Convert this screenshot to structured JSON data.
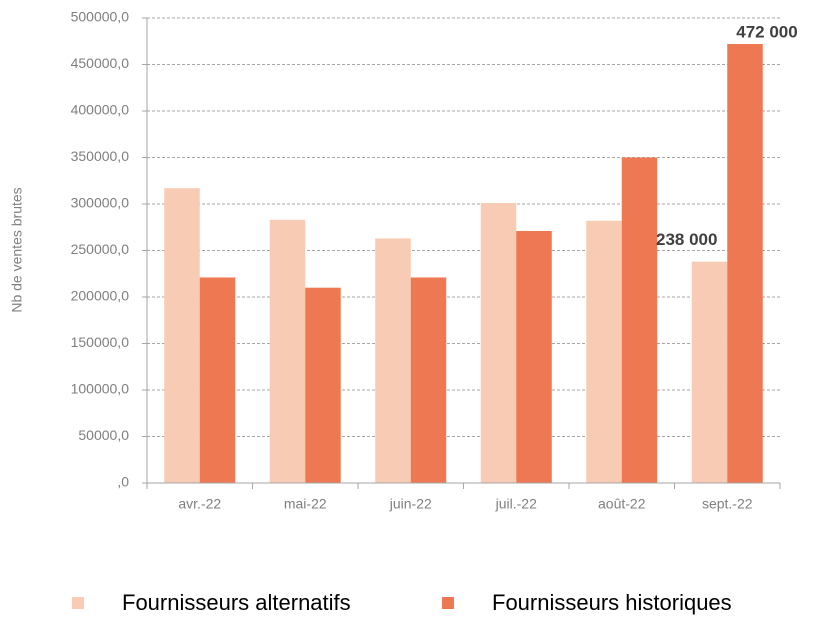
{
  "chart_data": {
    "type": "bar",
    "y_label": "Nb de ventes brutes",
    "categories": [
      "avr.-22",
      "mai-22",
      "juin-22",
      "juil.-22",
      "août-22",
      "sept.-22"
    ],
    "series": [
      {
        "name": "Fournisseurs alternatifs",
        "color": "#f8cbb4",
        "values": [
          317000,
          283000,
          263000,
          301000,
          282000,
          238000
        ],
        "value_labels": [
          null,
          null,
          null,
          null,
          null,
          "238 000"
        ]
      },
      {
        "name": "Fournisseurs historiques",
        "color": "#ed7851",
        "values": [
          221000,
          210000,
          221000,
          271000,
          350000,
          472000
        ],
        "value_labels": [
          null,
          null,
          null,
          null,
          null,
          "472 000"
        ]
      }
    ],
    "ylim": [
      0,
      500000
    ],
    "yticks": [
      {
        "value": 0,
        "label": ",0"
      },
      {
        "value": 50000,
        "label": "50000,0"
      },
      {
        "value": 100000,
        "label": "100000,0"
      },
      {
        "value": 150000,
        "label": "150000,0"
      },
      {
        "value": 200000,
        "label": "200000,0"
      },
      {
        "value": 250000,
        "label": "250000,0"
      },
      {
        "value": 300000,
        "label": "300000,0"
      },
      {
        "value": 350000,
        "label": "350000,0"
      },
      {
        "value": 400000,
        "label": "400000,0"
      },
      {
        "value": 450000,
        "label": "450000,0"
      },
      {
        "value": 500000,
        "label": "500000,0"
      }
    ],
    "grid": true,
    "legend": "bottom"
  }
}
